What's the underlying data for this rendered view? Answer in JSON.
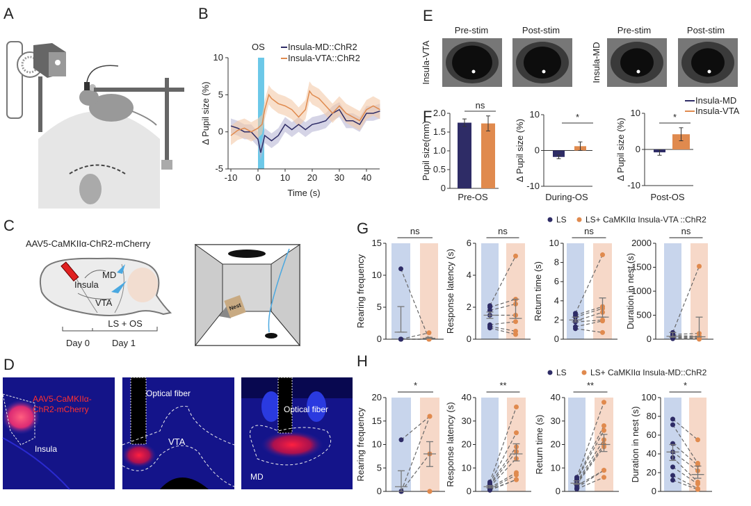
{
  "panel_labels": {
    "A": "A",
    "B": "B",
    "C": "C",
    "D": "D",
    "E": "E",
    "F": "F",
    "G": "G",
    "H": "H"
  },
  "colors": {
    "md": "#2e2c66",
    "vta": "#e08a4e",
    "ls_bg": "#c8d5ec",
    "exp_bg": "#f6d8c8",
    "os": "#6cc8e8",
    "band_md": "#b9b7d6",
    "band_vta": "#f3c9a9"
  },
  "panel_c": {
    "virus": "AAV5-CaMKIIα-ChR2-mCherry",
    "regions": {
      "md": "MD",
      "insula": "Insula",
      "vta": "VTA"
    },
    "timeline": {
      "protocol": "LS + OS",
      "day0": "Day 0",
      "day1": "Day 1"
    },
    "nest_label": "Nest"
  },
  "panel_d": {
    "virus_line1": "AAV5-CaMKIIα-",
    "virus_line2": "ChR2-mCherry",
    "insula": "Insula",
    "fiber1": "Optical fiber",
    "vta": "VTA",
    "fiber2": "Optical fiber",
    "md": "MD"
  },
  "panel_e": {
    "group1": "Insula-VTA",
    "group2": "Insula-MD",
    "pre": "Pre-stim",
    "post": "Post-stim"
  },
  "chart_data": [
    {
      "id": "B",
      "type": "line",
      "xlabel": "Time (s)",
      "ylabel": "Δ Pupil size (%)",
      "xlim": [
        -10,
        45
      ],
      "ylim": [
        -5,
        10
      ],
      "xticks": [
        -10,
        0,
        10,
        20,
        30,
        40
      ],
      "yticks": [
        -5,
        0,
        5,
        10
      ],
      "annotation": "OS",
      "stim_window": [
        0,
        2.3
      ],
      "legend_position": "top-right",
      "series": [
        {
          "name": "Insula-MD::ChR2",
          "color": "md",
          "x": [
            -10,
            -7.5,
            -5,
            -2.5,
            0,
            1,
            2.5,
            5,
            7.5,
            10,
            12.5,
            15,
            17.5,
            20,
            22.5,
            25,
            27.5,
            30,
            32.5,
            35,
            37.5,
            40,
            42.5,
            45
          ],
          "y": [
            0.8,
            0.5,
            0,
            0,
            -1,
            -2.8,
            -0.5,
            -1.2,
            -0.5,
            1,
            0.3,
            1,
            0.3,
            1,
            1.2,
            1.5,
            2.5,
            3,
            1.5,
            1.5,
            1,
            2.5,
            2.5,
            2.8
          ],
          "err": 1.0
        },
        {
          "name": "Insula-VTA::ChR2",
          "color": "vta",
          "x": [
            -10,
            -7.5,
            -5,
            -2.5,
            0,
            1.5,
            2.5,
            4,
            5,
            7.5,
            10,
            12.5,
            15,
            17.5,
            19,
            20,
            22.5,
            25,
            27.5,
            30,
            32.5,
            35,
            37.5,
            40,
            42.5,
            45
          ],
          "y": [
            -0.5,
            0.2,
            0.5,
            0,
            0.5,
            1,
            3,
            5,
            4.5,
            3.8,
            3.5,
            3,
            2,
            3,
            5.5,
            5,
            4.5,
            3.5,
            2.5,
            3.5,
            2.5,
            2,
            1.5,
            3,
            3.5,
            3
          ],
          "err": 1.3
        }
      ]
    },
    {
      "id": "F1",
      "type": "bar",
      "categories": [
        "Pre-OS"
      ],
      "ylabel": "Pupil size(mm)",
      "ylim": [
        0,
        2
      ],
      "yticks": [
        0,
        0.5,
        1,
        1.5,
        2
      ],
      "ytick_labels": [
        "0",
        "0.5",
        "1.0",
        "1.5",
        "2.0"
      ],
      "series": [
        {
          "name": "Insula-MD",
          "values": [
            1.75
          ],
          "err": [
            0.1
          ]
        },
        {
          "name": "Insula-VTA",
          "values": [
            1.73
          ],
          "err": [
            0.2
          ]
        }
      ],
      "significance": "ns"
    },
    {
      "id": "F2",
      "type": "bar",
      "categories": [
        "During-OS"
      ],
      "ylabel": "Δ Pupil size (%)",
      "ylim": [
        -10,
        10
      ],
      "yticks": [
        -10,
        0,
        10
      ],
      "ytick_labels": [
        "-10",
        "0",
        "10"
      ],
      "series": [
        {
          "name": "Insula-MD",
          "values": [
            -1.8
          ],
          "err": [
            0.5
          ]
        },
        {
          "name": "Insula-VTA",
          "values": [
            1.2
          ],
          "err": [
            1.2
          ]
        }
      ],
      "significance": "*"
    },
    {
      "id": "F3",
      "type": "bar",
      "categories": [
        "Post-OS"
      ],
      "ylabel": "Δ Pupil size (%)",
      "ylim": [
        -10,
        10
      ],
      "yticks": [
        -10,
        0,
        10
      ],
      "ytick_labels": [
        "-10",
        "0",
        "10"
      ],
      "series": [
        {
          "name": "Insula-MD",
          "values": [
            -0.8
          ],
          "err": [
            0.8
          ]
        },
        {
          "name": "Insula-VTA",
          "values": [
            4.2
          ],
          "err": [
            1.8
          ]
        }
      ],
      "significance": "*",
      "legend": [
        "Insula-MD",
        "Insula-VTA"
      ],
      "legend_position": "top-right"
    },
    {
      "id": "G",
      "type": "scatter",
      "legend": [
        "LS",
        "LS+ CaMKIIα Insula-VTA ::ChR2"
      ],
      "panels": [
        {
          "ylabel": "Rearing frequency",
          "ylim": [
            0,
            15
          ],
          "yticks": [
            0,
            5,
            10,
            15
          ],
          "significance": "ns",
          "ls": [
            11,
            0,
            0,
            0,
            0,
            0,
            0
          ],
          "exp": [
            0,
            0,
            0,
            1,
            0,
            0,
            0
          ],
          "ls_mean": 1.1,
          "ls_sem": [
            1.1,
            5.1
          ],
          "exp_mean": 0.15,
          "exp_sem": [
            0.15,
            0.3
          ]
        },
        {
          "ylabel": "Response latency (s)",
          "ylim": [
            0,
            6
          ],
          "yticks": [
            0,
            2,
            4,
            6
          ],
          "significance": "ns",
          "ls": [
            2.1,
            2.0,
            1.8,
            1.5,
            0.9,
            0.8,
            0.7
          ],
          "exp": [
            5.2,
            2.5,
            2.2,
            1.5,
            1.1,
            0.5,
            0.3
          ],
          "ls_mean": 1.5,
          "ls_sem": [
            1.3,
            1.7
          ],
          "exp_mean": 1.3,
          "exp_sem": [
            1.3,
            2.5
          ]
        },
        {
          "ylabel": "Return time (s)",
          "ylim": [
            0,
            10
          ],
          "yticks": [
            0,
            2,
            4,
            6,
            8,
            10
          ],
          "significance": "ns",
          "ls": [
            2.7,
            2.5,
            2.3,
            1.9,
            1.8,
            1.3,
            1.1
          ],
          "exp": [
            8.8,
            3.4,
            3.2,
            2.8,
            2.0,
            1.9,
            0.7
          ],
          "ls_mean": 2.0,
          "ls_sem": [
            1.8,
            2.3
          ],
          "exp_mean": 2.3,
          "exp_sem": [
            2.3,
            4.3
          ]
        },
        {
          "ylabel": "Duration in nest (s)",
          "ylim": [
            0,
            2000
          ],
          "yticks": [
            0,
            500,
            1000,
            1500,
            2000
          ],
          "significance": "ns",
          "ls": [
            140,
            100,
            80,
            60,
            40,
            20,
            10
          ],
          "exp": [
            1520,
            120,
            60,
            40,
            20,
            10,
            0
          ],
          "ls_mean": 60,
          "ls_sem": [
            40,
            140
          ],
          "exp_mean": 50,
          "exp_sem": [
            50,
            460
          ]
        }
      ]
    },
    {
      "id": "H",
      "type": "scatter",
      "legend": [
        "LS",
        "LS+ CaMKIIα Insula-MD::ChR2"
      ],
      "panels": [
        {
          "ylabel": "Rearing frequency",
          "ylim": [
            0,
            20
          ],
          "yticks": [
            0,
            5,
            10,
            15,
            20
          ],
          "significance": "*",
          "ls": [
            11,
            0,
            0,
            0,
            0
          ],
          "exp": [
            16,
            16,
            8,
            0,
            0
          ],
          "ls_mean": 1,
          "ls_sem": [
            0,
            4.4
          ],
          "exp_mean": 8,
          "exp_sem": [
            5.3,
            10.6
          ]
        },
        {
          "ylabel": "Response latency (s)",
          "ylim": [
            0,
            40
          ],
          "yticks": [
            0,
            10,
            20,
            30,
            40
          ],
          "significance": "**",
          "ls": [
            4,
            3.5,
            3,
            2.5,
            2,
            1.5,
            1,
            0.8,
            0.5
          ],
          "exp": [
            36,
            25,
            19,
            17,
            14,
            8,
            7,
            5,
            5
          ],
          "ls_mean": 2,
          "ls_sem": [
            1.5,
            2.5
          ],
          "exp_mean": 16,
          "exp_sem": [
            13,
            20.3
          ]
        },
        {
          "ylabel": "Return time (s)",
          "ylim": [
            0,
            40
          ],
          "yticks": [
            0,
            10,
            20,
            30,
            40
          ],
          "significance": "**",
          "ls": [
            6,
            5.5,
            5,
            4,
            3.5,
            3,
            2.5,
            1.5,
            1
          ],
          "exp": [
            38,
            28,
            26,
            22,
            20,
            19,
            9,
            9,
            6
          ],
          "ls_mean": 3.5,
          "ls_sem": [
            3,
            4.5
          ],
          "exp_mean": 20,
          "exp_sem": [
            17,
            24.3
          ]
        },
        {
          "ylabel": "Duration in nest (s)",
          "ylim": [
            0,
            100
          ],
          "yticks": [
            0,
            20,
            40,
            60,
            80,
            100
          ],
          "significance": "*",
          "ls": [
            77,
            71,
            51,
            42,
            36,
            26,
            17,
            12
          ],
          "exp": [
            55,
            30,
            28,
            22,
            10,
            8,
            3,
            2
          ],
          "ls_mean": 42,
          "ls_sem": [
            33,
            50
          ],
          "exp_mean": 18,
          "exp_sem": [
            14,
            27
          ]
        }
      ]
    }
  ]
}
